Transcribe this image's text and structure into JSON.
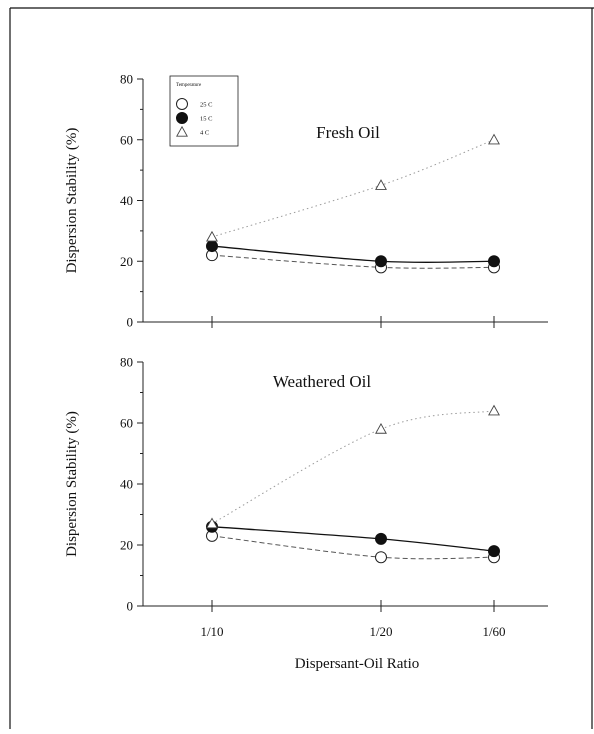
{
  "chart_data": [
    {
      "type": "line",
      "title": "Fresh Oil",
      "xlabel": "",
      "ylabel": "Dispersion Stability (%)",
      "categories": [
        "1/10",
        "1/20",
        "1/60"
      ],
      "ylim": [
        0,
        80
      ],
      "yticks": [
        "0",
        "20",
        "40",
        "60",
        "80"
      ],
      "legend": {
        "title": "Temperature",
        "placement": "top-left",
        "entries": [
          "25 C",
          "15 C",
          "4 C"
        ]
      },
      "series": [
        {
          "name": "25 C",
          "marker": "open-circle",
          "style": "dashed",
          "color": "#555555",
          "values": [
            22,
            18,
            18
          ]
        },
        {
          "name": "15 C",
          "marker": "filled-circle",
          "style": "solid",
          "color": "#111111",
          "values": [
            25,
            20,
            20
          ]
        },
        {
          "name": "4 C",
          "marker": "open-triangle",
          "style": "dotted",
          "color": "#9a9a9a",
          "values": [
            28,
            45,
            60
          ]
        }
      ],
      "grid": false
    },
    {
      "type": "line",
      "title": "Weathered Oil",
      "xlabel": "Dispersant-Oil Ratio",
      "ylabel": "Dispersion Stability (%)",
      "categories": [
        "1/10",
        "1/20",
        "1/60"
      ],
      "ylim": [
        0,
        80
      ],
      "yticks": [
        "0",
        "20",
        "40",
        "60",
        "80"
      ],
      "series": [
        {
          "name": "25 C",
          "marker": "open-circle",
          "style": "dashed",
          "color": "#555555",
          "values": [
            23,
            16,
            16
          ]
        },
        {
          "name": "15 C",
          "marker": "filled-circle",
          "style": "solid",
          "color": "#111111",
          "values": [
            26,
            22,
            18
          ]
        },
        {
          "name": "4 C",
          "marker": "open-triangle",
          "style": "dotted",
          "color": "#9a9a9a",
          "values": [
            27,
            58,
            64
          ]
        }
      ],
      "grid": false
    }
  ]
}
